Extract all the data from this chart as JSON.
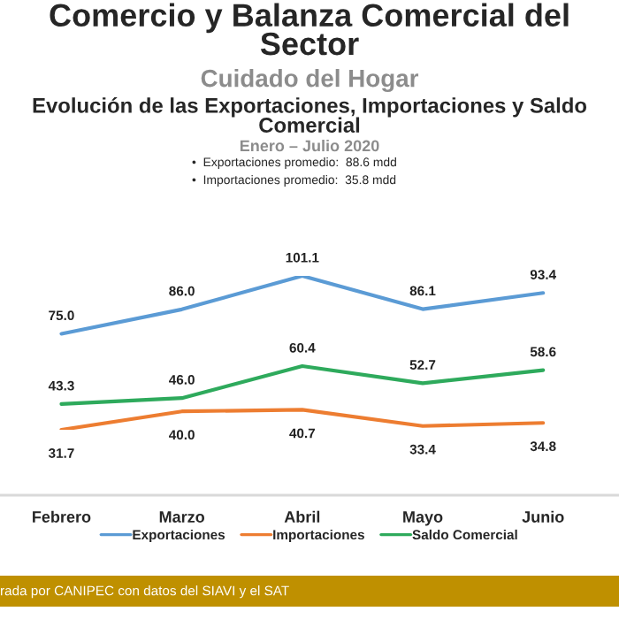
{
  "chart_data": {
    "type": "line",
    "title": "Comercio y Balanza Comercial del Sector",
    "subtitle": "Cuidado del Hogar",
    "annotations": [
      "Evolución de las Exportaciones, Importaciones y Saldo Comercial",
      "Enero – Julio 2020",
      "•  Exportaciones promedio:  88.6 mdd",
      "•  Importaciones promedio:  35.8 mdd",
      "rada por CANIPEC con datos del SIAVI y el SAT"
    ],
    "categories": [
      "Febrero",
      "Marzo",
      "Abril",
      "Mayo",
      "Junio"
    ],
    "series": [
      {
        "name": "Exportaciones",
        "color": "#5b9bd5",
        "values": [
          75.0,
          86.0,
          101.1,
          86.1,
          93.4
        ],
        "value_labels": [
          "75.0",
          "86.0",
          "101.1",
          "86.1",
          "93.4"
        ]
      },
      {
        "name": "Importaciones",
        "color": "#ed7d31",
        "values": [
          31.7,
          40.0,
          40.7,
          33.4,
          34.8
        ],
        "value_labels": [
          "31.7",
          "40.0",
          "40.7",
          "33.4",
          "34.8"
        ]
      },
      {
        "name": "Saldo Comercial",
        "color": "#2eaa5c",
        "values": [
          43.3,
          46.0,
          60.4,
          52.7,
          58.6
        ],
        "value_labels": [
          "43.3",
          "46.0",
          "60.4",
          "52.7",
          "58.6"
        ]
      }
    ],
    "legend": "bottom",
    "grid": false,
    "marker": "none",
    "line_style": "solid"
  }
}
